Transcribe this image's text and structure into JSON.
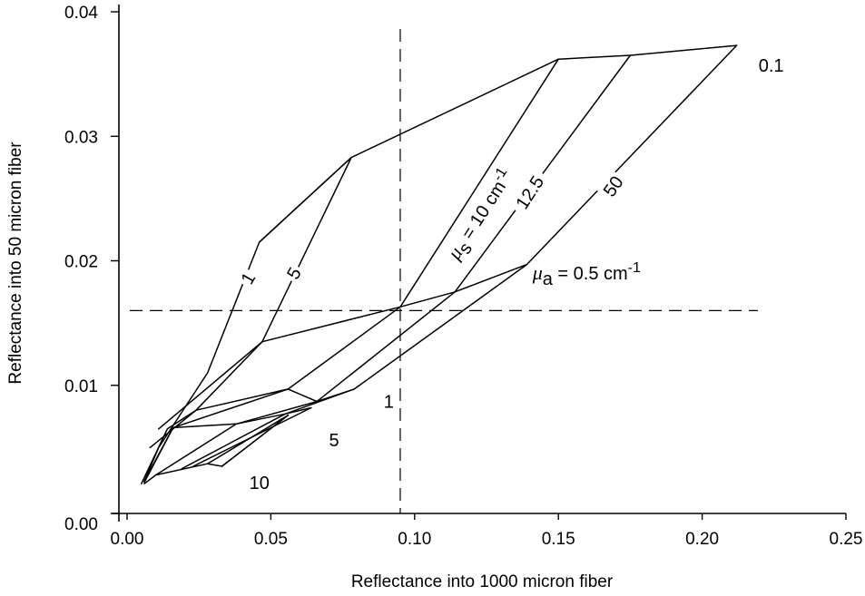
{
  "chart_data": {
    "type": "line",
    "xlabel": "Reflectance into 1000 micron fiber",
    "ylabel": "Reflectance into 50 micron fiber",
    "xlim": [
      0,
      0.25
    ],
    "ylim": [
      0,
      0.04
    ],
    "x_ticks": [
      "0.00",
      "0.05",
      "0.10",
      "0.15",
      "0.20",
      "0.25"
    ],
    "y_ticks": [
      "0.00",
      "0.01",
      "0.02",
      "0.03",
      "0.04"
    ],
    "reference_lines": {
      "x": 0.095,
      "y": 0.016
    },
    "mu_s_values": [
      "5",
      "10",
      "12.5",
      "50"
    ],
    "mu_a_values": [
      "0.1",
      "0.5",
      "1",
      "5",
      "10"
    ],
    "series": [
      {
        "family": "mu_a",
        "name": "0.1",
        "x": [
          0.046,
          0.078,
          0.15,
          0.175,
          0.212
        ],
        "y": [
          0.0215,
          0.0283,
          0.0362,
          0.0365,
          0.0373
        ]
      },
      {
        "family": "mu_a",
        "name": "0.5",
        "x": [
          0.011,
          0.047,
          0.095,
          0.114,
          0.139
        ],
        "y": [
          0.0065,
          0.0135,
          0.0163,
          0.0175,
          0.0197
        ]
      },
      {
        "family": "mu_a",
        "name": "1",
        "x": [
          0.008,
          0.024,
          0.056,
          0.066,
          0.079
        ],
        "y": [
          0.005,
          0.008,
          0.0097,
          0.0087,
          0.0097
        ]
      },
      {
        "family": "mu_a",
        "name": "5",
        "x": [
          0.006,
          0.016,
          0.038,
          0.055,
          0.064
        ],
        "y": [
          0.0023,
          0.0066,
          0.0069,
          0.0077,
          0.0082
        ]
      },
      {
        "family": "mu_a",
        "name": "10",
        "x": [
          0.006,
          0.01,
          0.028,
          0.033,
          0.056
        ],
        "y": [
          0.0021,
          0.0028,
          0.0037,
          0.0035,
          0.0076
        ]
      },
      {
        "family": "mu_s",
        "name": "1",
        "x": [
          0.006,
          0.011,
          0.028,
          0.046,
          0.078
        ],
        "y": [
          0.0023,
          0.005,
          0.011,
          0.0215,
          0.0283
        ]
      },
      {
        "family": "mu_s",
        "name": "5",
        "x": [
          0.005,
          0.014,
          0.024,
          0.047,
          0.078
        ],
        "y": [
          0.0021,
          0.0065,
          0.008,
          0.0135,
          0.0283
        ]
      },
      {
        "family": "mu_s",
        "name": "10",
        "x": [
          0.006,
          0.016,
          0.056,
          0.095,
          0.15
        ],
        "y": [
          0.0022,
          0.0066,
          0.0097,
          0.0163,
          0.0362
        ]
      },
      {
        "family": "mu_s",
        "name": "12.5",
        "x": [
          0.01,
          0.038,
          0.066,
          0.114,
          0.175
        ],
        "y": [
          0.0028,
          0.0069,
          0.0087,
          0.0175,
          0.0365
        ]
      },
      {
        "family": "mu_s",
        "name": "50",
        "x": [
          0.019,
          0.055,
          0.079,
          0.139,
          0.212
        ],
        "y": [
          0.0033,
          0.0077,
          0.0097,
          0.0197,
          0.0373
        ]
      },
      {
        "family": "mu_s",
        "name": "",
        "x": [
          0.023,
          0.064
        ],
        "y": [
          0.0035,
          0.0082
        ]
      },
      {
        "family": "mu_s",
        "name": "",
        "x": [
          0.028,
          0.056
        ],
        "y": [
          0.0037,
          0.0076
        ]
      },
      {
        "family": "mu_s",
        "name": "",
        "x": [
          0.033,
          0.056
        ],
        "y": [
          0.0035,
          0.0076
        ]
      }
    ],
    "annotations": [
      {
        "text": "0.1",
        "x": 0.224,
        "y": 0.0357,
        "rotate": 0
      },
      {
        "text": "1",
        "x": 0.042,
        "y": 0.0186,
        "rotate": -60
      },
      {
        "text": "5",
        "x": 0.058,
        "y": 0.019,
        "rotate": -60
      },
      {
        "text": "1",
        "x": 0.091,
        "y": 0.0087,
        "rotate": 0
      },
      {
        "text": "5",
        "x": 0.072,
        "y": 0.0056,
        "rotate": 0
      },
      {
        "text": "10",
        "x": 0.046,
        "y": 0.0022,
        "rotate": 0
      },
      {
        "text": "12.5",
        "x": 0.14,
        "y": 0.0255,
        "rotate": -57
      },
      {
        "text": "50",
        "x": 0.169,
        "y": 0.026,
        "rotate": -55
      }
    ],
    "mu_s_label": {
      "symbol": "μ",
      "sub": "s",
      "rest": " = 10 cm",
      "sup": "-1",
      "x": 0.115,
      "y": 0.02,
      "rotate": -57
    },
    "mu_a_label": {
      "symbol": "μ",
      "sub": "a",
      "rest": " = 0.5 cm",
      "sup": "-1",
      "x": 0.141,
      "y": 0.0185,
      "rotate": 0
    },
    "grid": false,
    "legend": "none"
  }
}
